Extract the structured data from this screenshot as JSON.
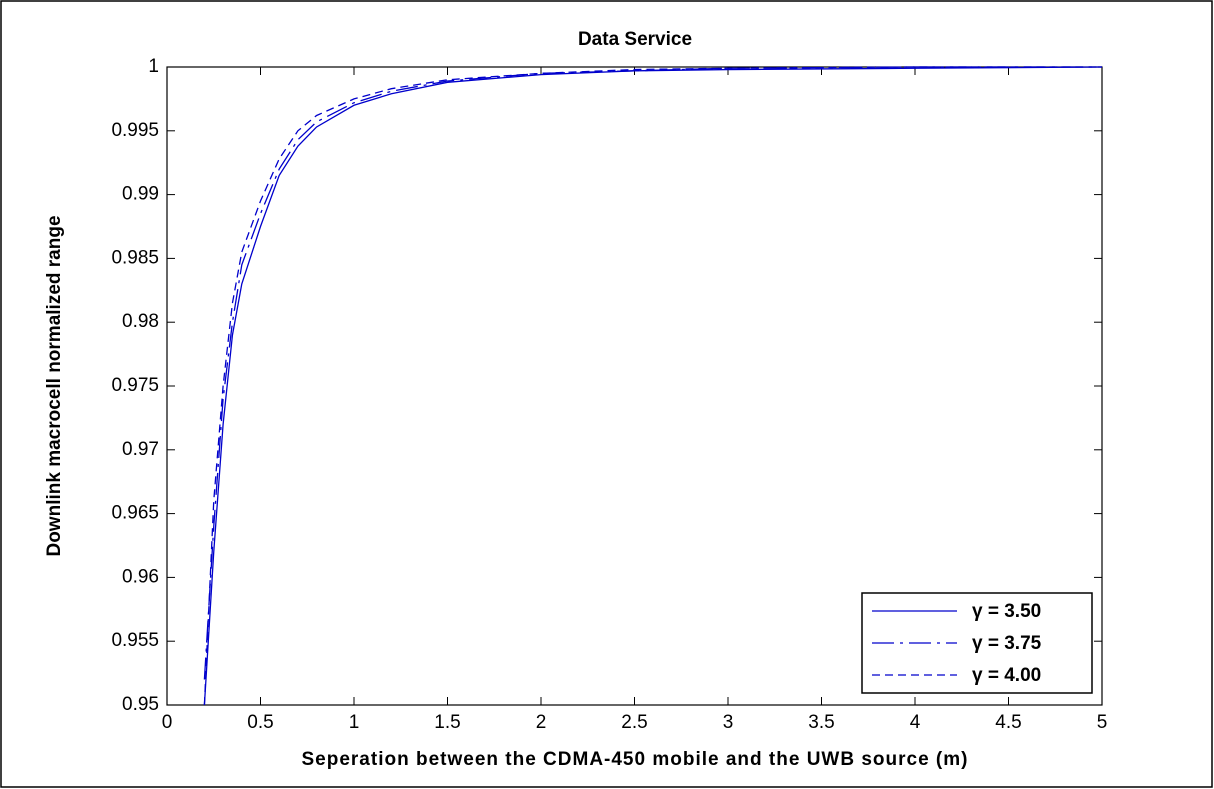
{
  "chart_data": {
    "type": "line",
    "title": "Data  Service",
    "x_label": "Seperation between the CDMA-450 mobile and the UWB source  (m)",
    "y_label": "Downlink     macrocell     normalized  range",
    "x": [
      0.2,
      0.25,
      0.3,
      0.35,
      0.4,
      0.5,
      0.6,
      0.7,
      0.8,
      1,
      1.2,
      1.5,
      2,
      2.5,
      3,
      4,
      5
    ],
    "series": [
      {
        "name": "γ = 3.50",
        "color": "#0000cc",
        "line_style": "solid",
        "values": [
          0.95,
          0.962,
          0.972,
          0.979,
          0.983,
          0.9875,
          0.9915,
          0.9938,
          0.9953,
          0.997,
          0.9979,
          0.9988,
          0.9994,
          0.9997,
          0.9998,
          0.9999,
          1
        ]
      },
      {
        "name": "γ = 3.75",
        "color": "#0000cc",
        "line_style": "dashdot",
        "values": [
          0.952,
          0.964,
          0.974,
          0.98,
          0.9845,
          0.9885,
          0.992,
          0.9943,
          0.9957,
          0.9972,
          0.9981,
          0.9989,
          0.9995,
          0.9997,
          0.9999,
          1,
          1
        ]
      },
      {
        "name": "γ = 4.00",
        "color": "#0000cc",
        "line_style": "dashed",
        "values": [
          0.95,
          0.966,
          0.975,
          0.9815,
          0.9855,
          0.9895,
          0.9928,
          0.995,
          0.9962,
          0.9975,
          0.9983,
          0.999,
          0.9995,
          0.9998,
          0.9999,
          1,
          1
        ]
      }
    ],
    "xlim": [
      0,
      5
    ],
    "xticks": [
      0,
      0.5,
      1,
      1.5,
      2,
      2.5,
      3,
      3.5,
      4,
      4.5,
      5
    ],
    "ylim": [
      0.95,
      1
    ],
    "yticks": [
      0.95,
      0.955,
      0.96,
      0.965,
      0.97,
      0.975,
      0.98,
      0.985,
      0.99,
      0.995,
      1
    ],
    "legend": "lower right",
    "grid": false
  }
}
